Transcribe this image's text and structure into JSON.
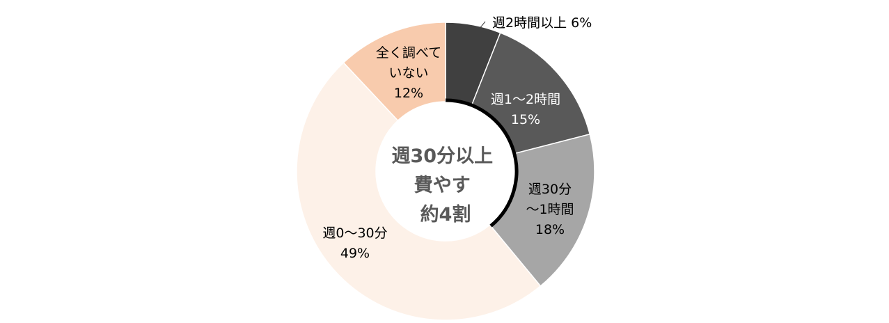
{
  "chart_data": {
    "type": "pie",
    "variant": "donut",
    "start": "top, clockwise",
    "slices": [
      {
        "label_lines": [
          "週2時間以上 6%"
        ],
        "value": 6,
        "color": "#404040",
        "label_color": "#000000",
        "label_placement": "outside with leader line"
      },
      {
        "label_lines": [
          "週1～2時間",
          "15%"
        ],
        "value": 15,
        "color": "#595959",
        "label_color": "#ffffff"
      },
      {
        "label_lines": [
          "週30分",
          "～1時間",
          "18%"
        ],
        "value": 18,
        "color": "#a6a6a6",
        "label_color": "#000000"
      },
      {
        "label_lines": [
          "週0～30分",
          "49%"
        ],
        "value": 49,
        "color": "#fdf1e8",
        "label_color": "#000000"
      },
      {
        "label_lines": [
          "全く調べて",
          "いない",
          "12%"
        ],
        "value": 12,
        "color": "#f8cbad",
        "label_color": "#000000"
      }
    ],
    "center_text": [
      "週30分以上",
      "費やす",
      "約4割"
    ],
    "highlight_arc": {
      "from_slice": 0,
      "to_slice": 2,
      "color": "#000000"
    }
  }
}
